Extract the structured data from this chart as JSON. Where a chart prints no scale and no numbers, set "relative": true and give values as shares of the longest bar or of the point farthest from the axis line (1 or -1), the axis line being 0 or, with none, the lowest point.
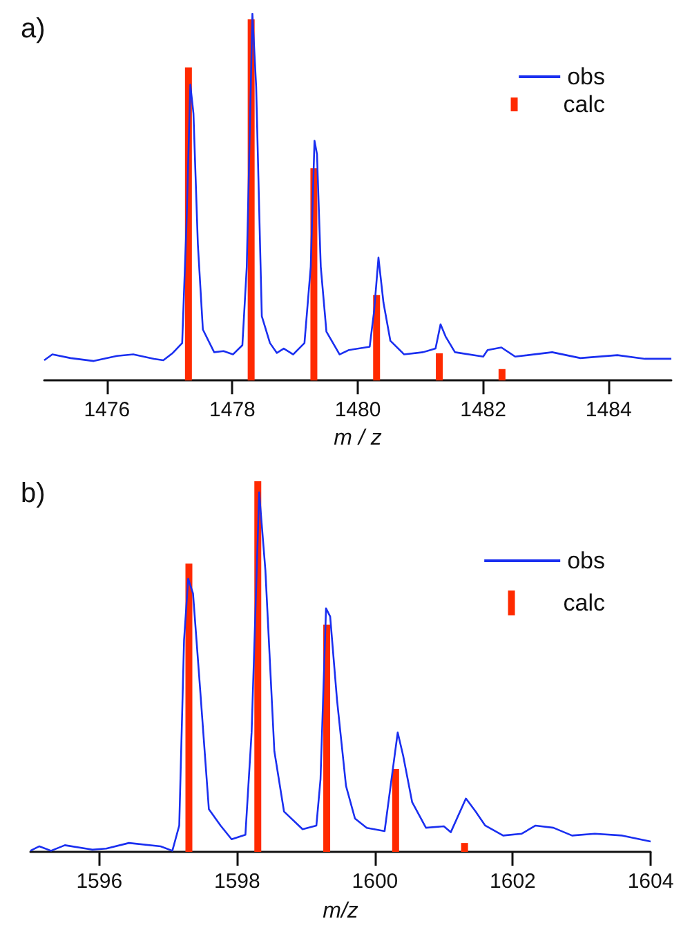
{
  "chart_data": [
    {
      "type": "line",
      "title": "a)",
      "xlabel": "m / z",
      "relative": true,
      "xlim": [
        1475,
        1485
      ],
      "xticks": [
        1476,
        1478,
        1480,
        1482,
        1484
      ],
      "grid": false,
      "legend": "top right",
      "tick_labels": "x",
      "series": [
        {
          "name": "obs",
          "color": "#1a2ff0",
          "x": [
            1475.0,
            1475.13,
            1475.42,
            1475.79,
            1476.16,
            1476.42,
            1476.75,
            1476.9,
            1477.05,
            1477.2,
            1477.27,
            1477.33,
            1477.38,
            1477.45,
            1477.53,
            1477.71,
            1477.86,
            1478.01,
            1478.16,
            1478.23,
            1478.32,
            1478.38,
            1478.47,
            1478.6,
            1478.71,
            1478.82,
            1478.97,
            1479.15,
            1479.25,
            1479.31,
            1479.35,
            1479.41,
            1479.5,
            1479.71,
            1479.86,
            1480.19,
            1480.26,
            1480.33,
            1480.41,
            1480.52,
            1480.74,
            1481.04,
            1481.24,
            1481.32,
            1481.4,
            1481.55,
            1482.0,
            1482.07,
            1482.29,
            1482.51,
            1483.1,
            1483.55,
            1484.14,
            1484.58,
            1485.0
          ],
          "values": [
            0.055,
            0.071,
            0.061,
            0.053,
            0.067,
            0.071,
            0.059,
            0.055,
            0.075,
            0.102,
            0.433,
            0.807,
            0.728,
            0.372,
            0.139,
            0.077,
            0.08,
            0.071,
            0.096,
            0.31,
            1.0,
            0.801,
            0.175,
            0.102,
            0.075,
            0.087,
            0.071,
            0.102,
            0.31,
            0.654,
            0.617,
            0.31,
            0.133,
            0.071,
            0.083,
            0.092,
            0.188,
            0.335,
            0.212,
            0.108,
            0.071,
            0.077,
            0.087,
            0.153,
            0.12,
            0.077,
            0.065,
            0.083,
            0.09,
            0.065,
            0.077,
            0.061,
            0.069,
            0.059,
            0.059
          ]
        },
        {
          "name": "calc",
          "type": "bar",
          "color": "#ff2a00",
          "x": [
            1477.3,
            1478.3,
            1479.3,
            1480.3,
            1481.3,
            1482.3
          ],
          "values": [
            0.854,
            0.985,
            0.579,
            0.233,
            0.074,
            0.031
          ]
        }
      ]
    },
    {
      "type": "line",
      "title": "b)",
      "xlabel": "m/z",
      "relative": true,
      "xlim": [
        1595,
        1604
      ],
      "xticks": [
        1596,
        1598,
        1600,
        1602,
        1604
      ],
      "grid": false,
      "legend": "top right",
      "tick_labels": "x",
      "series": [
        {
          "name": "obs",
          "color": "#1a2ff0",
          "x": [
            1595.0,
            1595.13,
            1595.3,
            1595.5,
            1595.9,
            1596.1,
            1596.43,
            1596.89,
            1597.06,
            1597.16,
            1597.23,
            1597.29,
            1597.36,
            1597.46,
            1597.59,
            1597.76,
            1597.92,
            1598.12,
            1598.21,
            1598.32,
            1598.41,
            1598.54,
            1598.68,
            1598.95,
            1599.15,
            1599.21,
            1599.29,
            1599.35,
            1599.45,
            1599.58,
            1599.71,
            1599.88,
            1600.14,
            1600.24,
            1600.33,
            1600.41,
            1600.54,
            1600.74,
            1601.0,
            1601.1,
            1601.32,
            1601.46,
            1601.6,
            1601.86,
            1602.13,
            1602.33,
            1602.59,
            1602.86,
            1603.19,
            1603.59,
            1604.0
          ],
          "values": [
            0.003,
            0.015,
            0.003,
            0.018,
            0.006,
            0.009,
            0.024,
            0.015,
            0.003,
            0.071,
            0.572,
            0.737,
            0.697,
            0.447,
            0.115,
            0.071,
            0.034,
            0.046,
            0.322,
            0.97,
            0.76,
            0.272,
            0.109,
            0.061,
            0.071,
            0.196,
            0.657,
            0.635,
            0.409,
            0.178,
            0.09,
            0.065,
            0.056,
            0.196,
            0.322,
            0.259,
            0.134,
            0.065,
            0.069,
            0.053,
            0.144,
            0.109,
            0.071,
            0.044,
            0.049,
            0.071,
            0.065,
            0.044,
            0.049,
            0.044,
            0.028
          ]
        },
        {
          "name": "calc",
          "type": "bar",
          "color": "#ff2a00",
          "x": [
            1597.3,
            1598.3,
            1599.3,
            1600.3,
            1601.3
          ],
          "values": [
            0.778,
            1.0,
            0.613,
            0.224,
            0.024
          ]
        }
      ]
    }
  ]
}
